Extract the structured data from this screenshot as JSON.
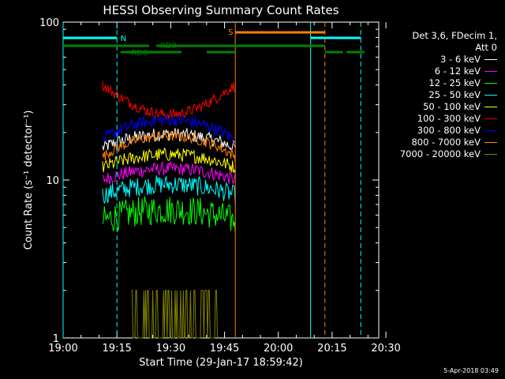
{
  "chart_data": {
    "type": "line",
    "title": "HESSI Observing Summary Count Rates",
    "xlabel": "Start Time (29-Jan-17 18:59:42)",
    "ylabel": "Count Rate (s⁻¹ detector⁻¹)",
    "y_scale": "log",
    "ylim": [
      1,
      100
    ],
    "xlim_minutes": [
      0,
      88
    ],
    "x_ticks": [
      "19:00",
      "19:15",
      "19:30",
      "19:45",
      "20:00",
      "20:15",
      "20:30"
    ],
    "y_ticks": [
      "1",
      "10",
      "100"
    ],
    "legend_header": [
      "Det 3,6, FDecim 1,",
      "Att 0"
    ],
    "legend_position": "top-right",
    "series": [
      {
        "name": "3 - 6 keV",
        "color": "#ffffff",
        "level": 16,
        "amp": 3.5,
        "noise": 0.1
      },
      {
        "name": "6 - 12 keV",
        "color": "#ff00ff",
        "level": 10,
        "amp": 1.8,
        "noise": 0.1
      },
      {
        "name": "12 - 25 keV",
        "color": "#00ff00",
        "level": 5.5,
        "amp": 1.0,
        "noise": 0.22
      },
      {
        "name": "25 - 50 keV",
        "color": "#00ffff",
        "level": 8,
        "amp": 1.4,
        "noise": 0.14
      },
      {
        "name": "50 - 100 keV",
        "color": "#ffff00",
        "level": 12,
        "amp": 2.5,
        "noise": 0.1
      },
      {
        "name": "100 - 300 keV",
        "color": "#ff0000",
        "level": 30,
        "amp": 0,
        "noise": 0.08
      },
      {
        "name": "300 - 800 keV",
        "color": "#0000ff",
        "level": 18,
        "amp": 6,
        "noise": 0.09
      },
      {
        "name": "800 - 7000 keV",
        "color": "#ff8000",
        "level": 14,
        "amp": 5,
        "noise": 0.08
      },
      {
        "name": "7000 - 20000 keV",
        "color": "#808000",
        "level": 1.5,
        "amp": 0,
        "noise": 0.3
      }
    ],
    "data_interval_minutes": [
      11,
      48
    ],
    "flags": [
      {
        "label": "N",
        "color": "#00ffff",
        "bars": [
          [
            0,
            15
          ],
          [
            69,
            83
          ]
        ],
        "row": 1,
        "lines": [
          0,
          15,
          69,
          83
        ]
      },
      {
        "label": "S",
        "color": "#ff8000",
        "bars": [
          [
            48,
            73
          ]
        ],
        "row": 0,
        "lines": [
          48,
          73
        ]
      },
      {
        "label": "RD0",
        "color": "#008000",
        "bars": [
          [
            0,
            24
          ],
          [
            26,
            73
          ]
        ],
        "row": 2
      },
      {
        "label": "RD6",
        "color": "#008000",
        "bars": [
          [
            16,
            33
          ],
          [
            40,
            48
          ],
          [
            73,
            78
          ],
          [
            79,
            84
          ]
        ],
        "row": 3
      }
    ]
  },
  "footer": {
    "timestamp": "5-Apr-2018 03:49"
  }
}
